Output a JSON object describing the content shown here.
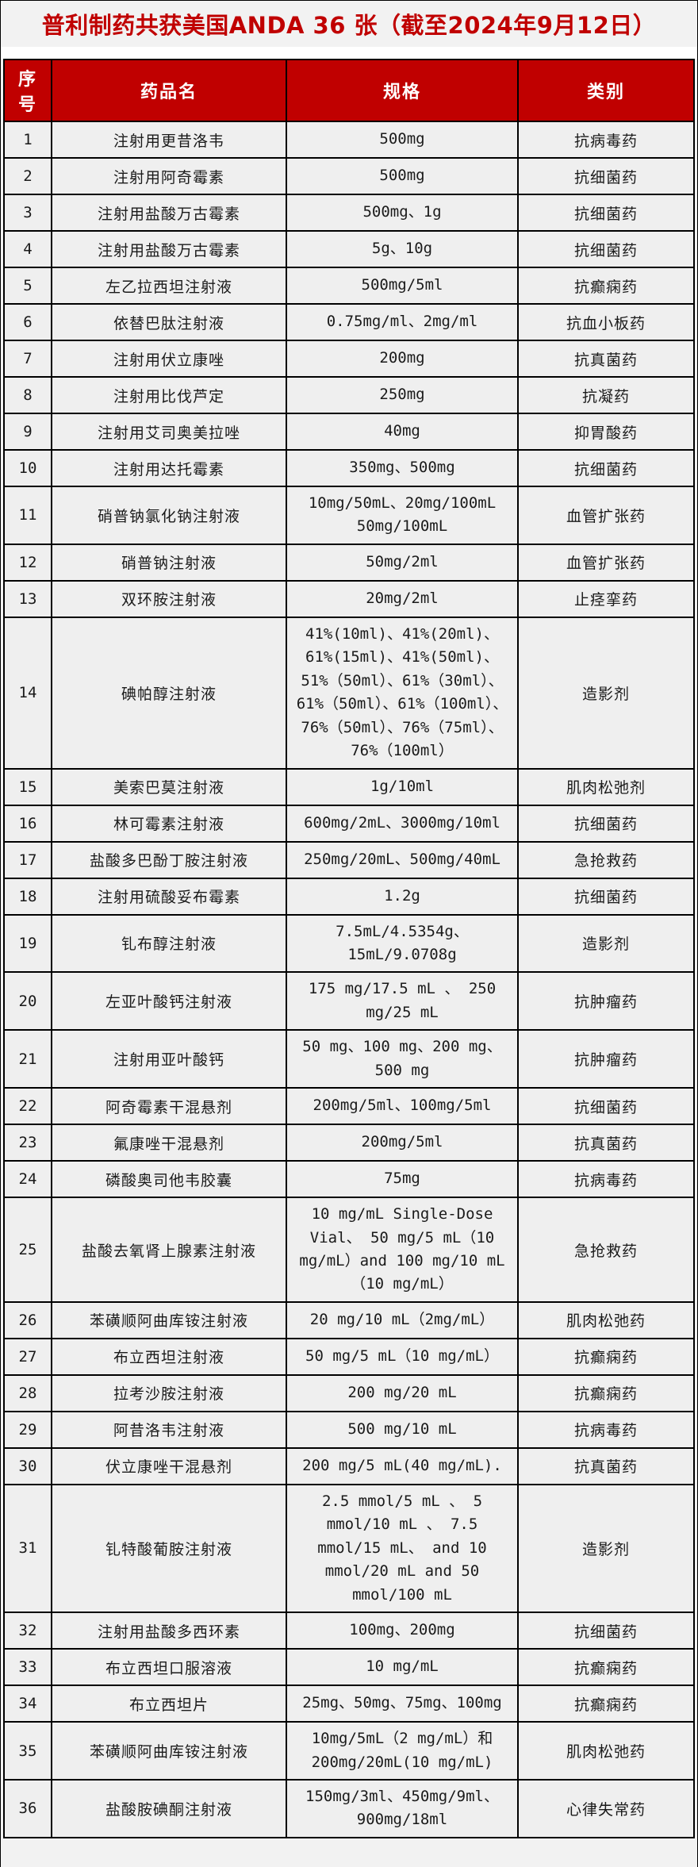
{
  "title": "普利制药共获美国ANDA 36 张（截至2024年9月12日）",
  "colors": {
    "accent_red": "#c00000",
    "header_text": "#ffffff",
    "row_background": "#efefef",
    "page_background": "#f2f2f2",
    "border": "#000000"
  },
  "table": {
    "headers": [
      "序号",
      "药品名",
      "规格",
      "类别"
    ],
    "rows": [
      {
        "no": "1",
        "name": "注射用更昔洛韦",
        "spec": "500mg",
        "category": "抗病毒药"
      },
      {
        "no": "2",
        "name": "注射用阿奇霉素",
        "spec": "500mg",
        "category": "抗细菌药"
      },
      {
        "no": "3",
        "name": "注射用盐酸万古霉素",
        "spec": "500mg、1g",
        "category": "抗细菌药"
      },
      {
        "no": "4",
        "name": "注射用盐酸万古霉素",
        "spec": "5g、10g",
        "category": "抗细菌药"
      },
      {
        "no": "5",
        "name": "左乙拉西坦注射液",
        "spec": "500mg/5ml",
        "category": "抗癫痫药"
      },
      {
        "no": "6",
        "name": "依替巴肽注射液",
        "spec": "0.75mg/ml、2mg/ml",
        "category": "抗血小板药"
      },
      {
        "no": "7",
        "name": "注射用伏立康唑",
        "spec": "200mg",
        "category": "抗真菌药"
      },
      {
        "no": "8",
        "name": "注射用比伐芦定",
        "spec": "250mg",
        "category": "抗凝药"
      },
      {
        "no": "9",
        "name": "注射用艾司奥美拉唑",
        "spec": "40mg",
        "category": "抑胃酸药"
      },
      {
        "no": "10",
        "name": "注射用达托霉素",
        "spec": "350mg、500mg",
        "category": "抗细菌药"
      },
      {
        "no": "11",
        "name": "硝普钠氯化钠注射液",
        "spec": "10mg/50mL、20mg/100mL 50mg/100mL",
        "category": "血管扩张药"
      },
      {
        "no": "12",
        "name": "硝普钠注射液",
        "spec": "50mg/2ml",
        "category": "血管扩张药"
      },
      {
        "no": "13",
        "name": "双环胺注射液",
        "spec": "20mg/2ml",
        "category": "止痉挛药"
      },
      {
        "no": "14",
        "name": "碘帕醇注射液",
        "spec": "41%(10ml)、41%(20ml)、61%(15ml)、41%(50ml)、51%（50ml）、61%（30ml）、61%（50ml）、61%（100ml）、76%（50ml）、76%（75ml）、76%（100ml）",
        "category": "造影剂"
      },
      {
        "no": "15",
        "name": "美索巴莫注射液",
        "spec": "1g/10ml",
        "category": "肌肉松弛剂"
      },
      {
        "no": "16",
        "name": "林可霉素注射液",
        "spec": "600mg/2mL、3000mg/10ml",
        "category": "抗细菌药"
      },
      {
        "no": "17",
        "name": "盐酸多巴酚丁胺注射液",
        "spec": "250mg/20mL、500mg/40mL",
        "category": "急抢救药"
      },
      {
        "no": "18",
        "name": "注射用硫酸妥布霉素",
        "spec": "1.2g",
        "category": "抗细菌药"
      },
      {
        "no": "19",
        "name": "钆布醇注射液",
        "spec": "7.5mL/4.5354g、15mL/9.0708g",
        "category": "造影剂"
      },
      {
        "no": "20",
        "name": "左亚叶酸钙注射液",
        "spec": "175 mg/17.5 mL 、 250 mg/25 mL",
        "category": "抗肿瘤药"
      },
      {
        "no": "21",
        "name": "注射用亚叶酸钙",
        "spec": "50 mg、100 mg、200 mg、500 mg",
        "category": "抗肿瘤药"
      },
      {
        "no": "22",
        "name": "阿奇霉素干混悬剂",
        "spec": "200mg/5ml、100mg/5ml",
        "category": "抗细菌药"
      },
      {
        "no": "23",
        "name": "氟康唑干混悬剂",
        "spec": "200mg/5ml",
        "category": "抗真菌药"
      },
      {
        "no": "24",
        "name": "磷酸奥司他韦胶囊",
        "spec": "75mg",
        "category": "抗病毒药"
      },
      {
        "no": "25",
        "name": "盐酸去氧肾上腺素注射液",
        "spec": "10 mg/mL Single-Dose Vial、 50 mg/5 mL（10 mg/mL）and 100 mg/10 mL（10 mg/mL）",
        "category": "急抢救药"
      },
      {
        "no": "26",
        "name": "苯磺顺阿曲库铵注射液",
        "spec": "20 mg/10 mL（2mg/mL）",
        "category": "肌肉松弛药"
      },
      {
        "no": "27",
        "name": "布立西坦注射液",
        "spec": "50 mg/5 mL（10 mg/mL）",
        "category": "抗癫痫药"
      },
      {
        "no": "28",
        "name": "拉考沙胺注射液",
        "spec": "200 mg/20 mL",
        "category": "抗癫痫药"
      },
      {
        "no": "29",
        "name": "阿昔洛韦注射液",
        "spec": "500 mg/10 mL",
        "category": "抗病毒药"
      },
      {
        "no": "30",
        "name": "伏立康唑干混悬剂",
        "spec": "200 mg/5 mL(40 mg/mL).",
        "category": "抗真菌药"
      },
      {
        "no": "31",
        "name": "钆特酸葡胺注射液",
        "spec": "2.5 mmol/5 mL 、 5 mmol/10 mL 、 7.5 mmol/15 mL、 and 10 mmol/20 mL and 50 mmol/100 mL",
        "category": "造影剂"
      },
      {
        "no": "32",
        "name": "注射用盐酸多西环素",
        "spec": "100mg、200mg",
        "category": "抗细菌药"
      },
      {
        "no": "33",
        "name": "布立西坦口服溶液",
        "spec": "10 mg/mL",
        "category": "抗癫痫药"
      },
      {
        "no": "34",
        "name": "布立西坦片",
        "spec": "25mg、50mg、75mg、100mg",
        "category": "抗癫痫药"
      },
      {
        "no": "35",
        "name": "苯磺顺阿曲库铵注射液",
        "spec": "10mg/5mL（2 mg/mL）和 200mg/20mL(10 mg/mL)",
        "category": "肌肉松弛药"
      },
      {
        "no": "36",
        "name": "盐酸胺碘酮注射液",
        "spec": "150mg/3ml、450mg/9ml、900mg/18ml",
        "category": "心律失常药"
      }
    ]
  }
}
